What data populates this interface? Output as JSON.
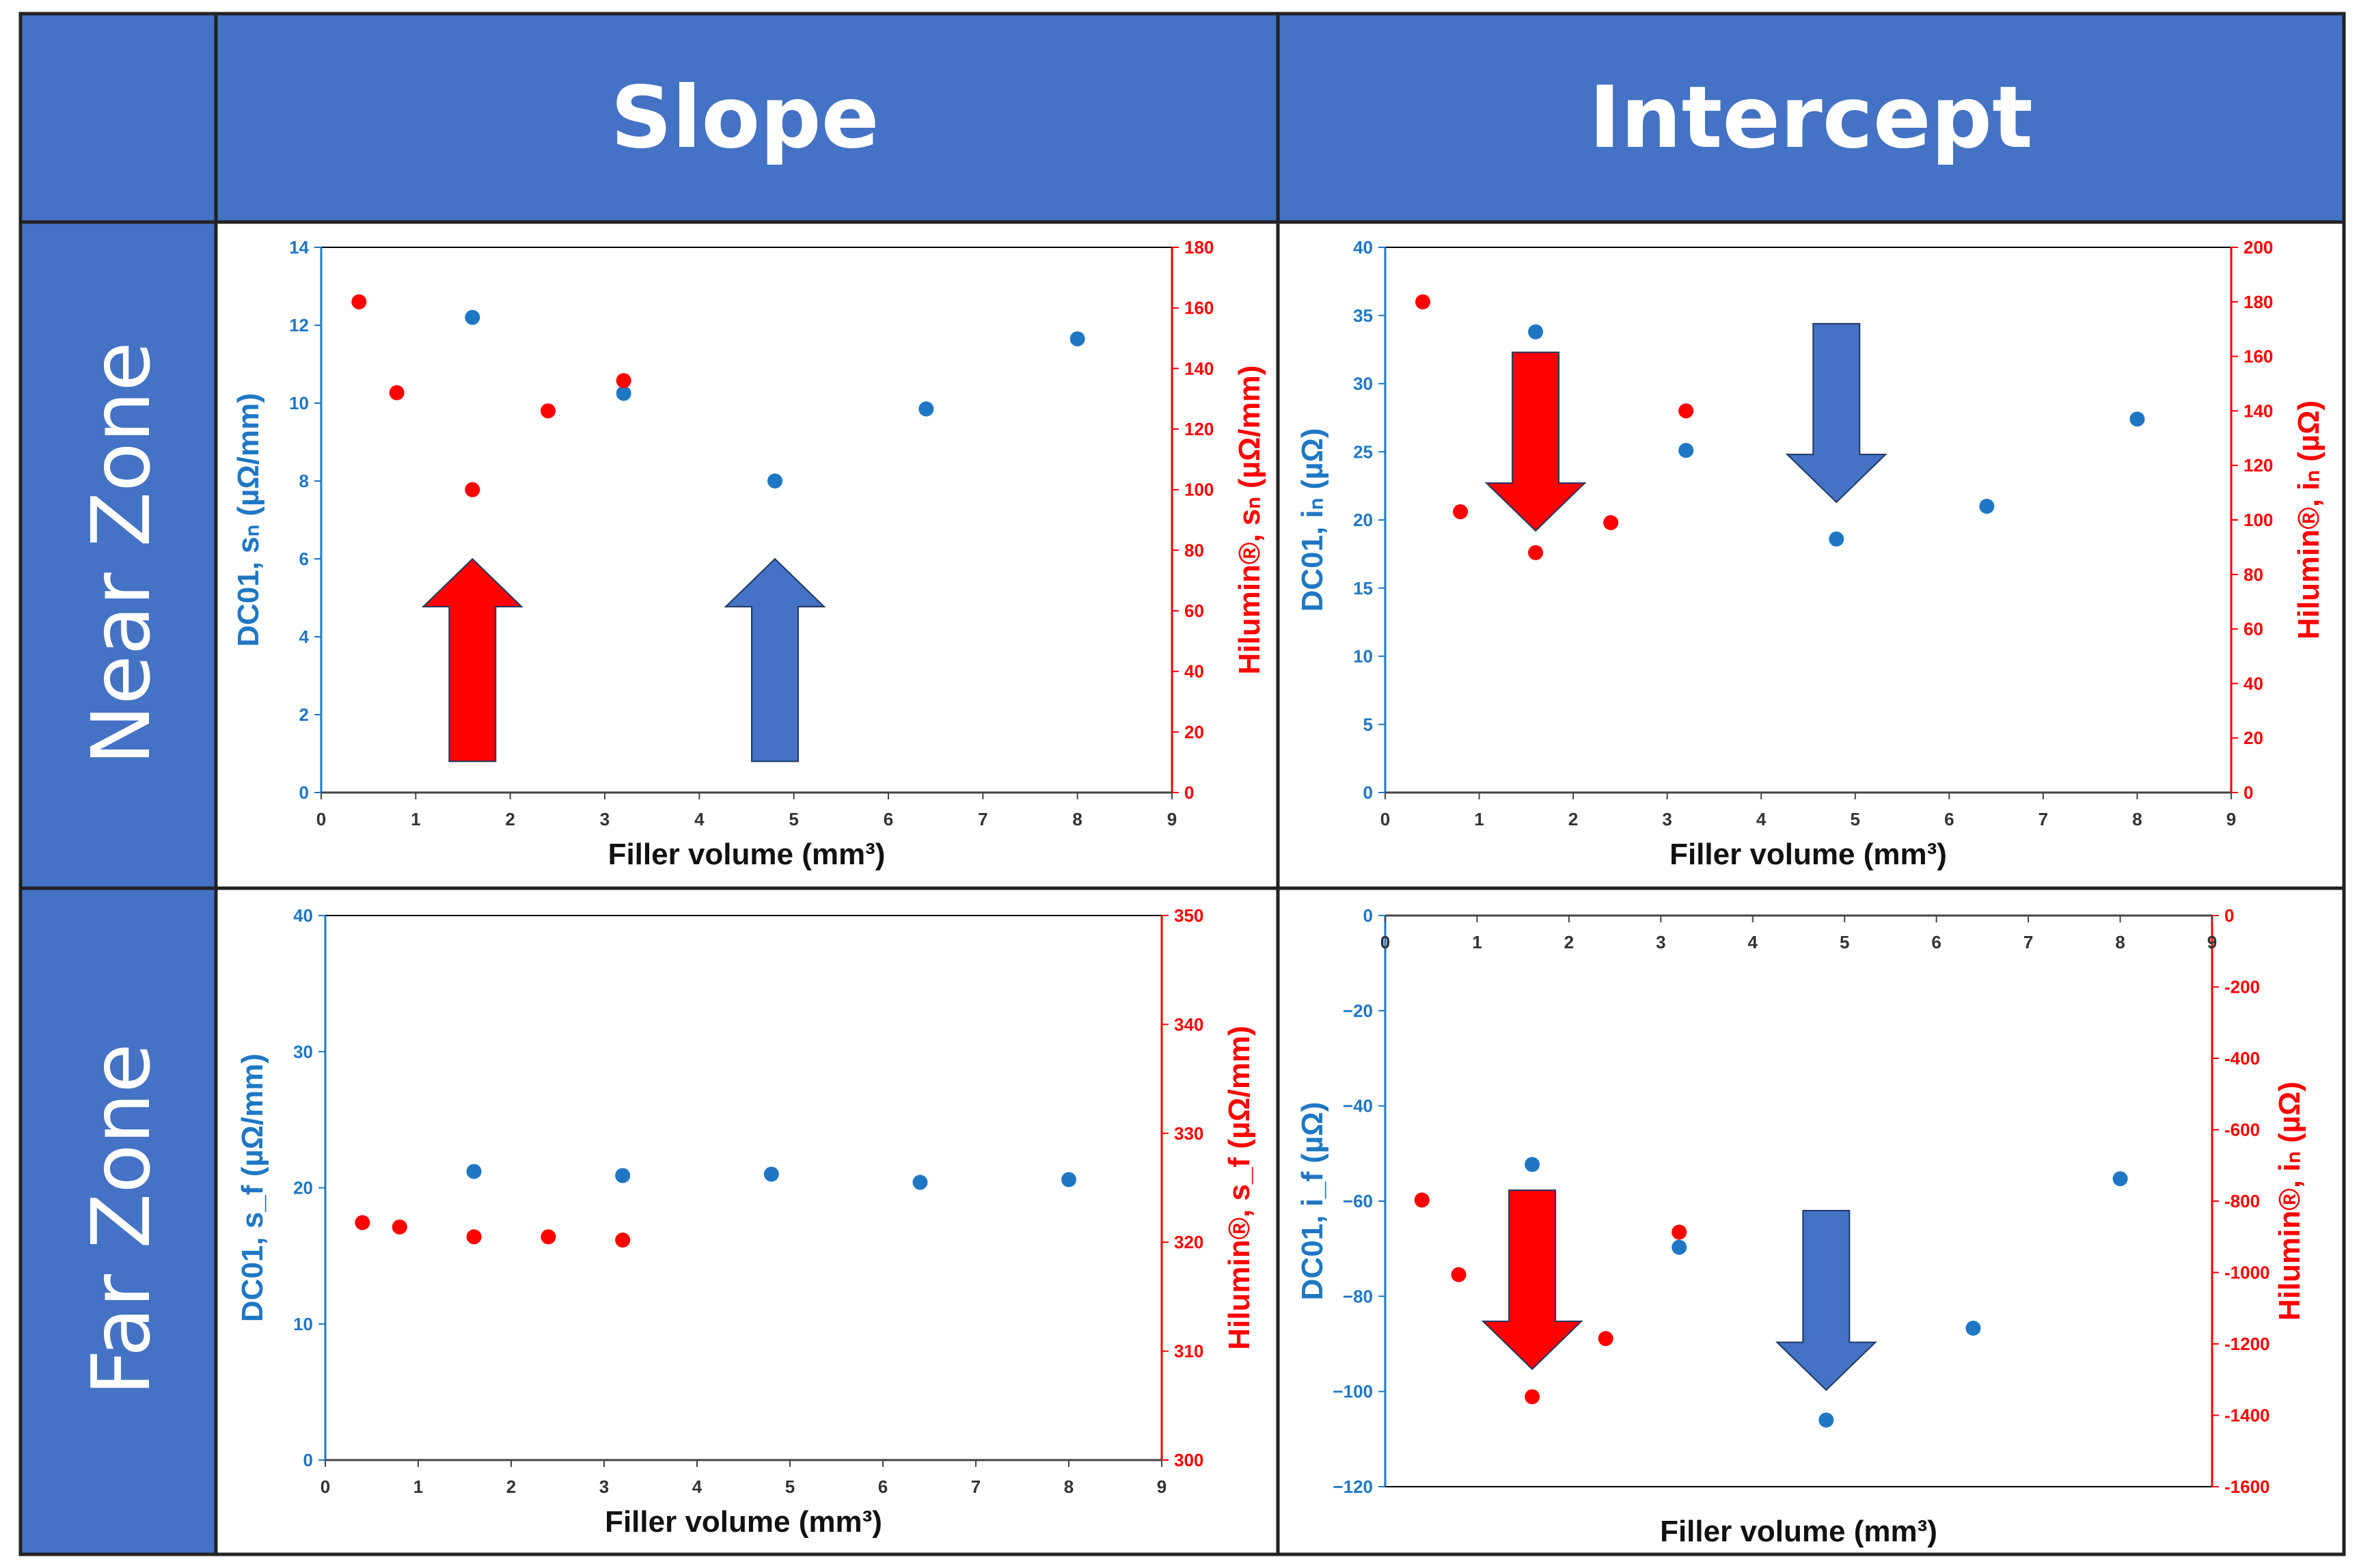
{
  "headers": {
    "corner": "",
    "col1": "Slope",
    "col2": "Intercept"
  },
  "row_labels": [
    "Near Zone",
    "Far Zone"
  ],
  "colors": {
    "header_bg": "#4472c4",
    "dc01": "#1f77c4",
    "hilumin": "#ff0000",
    "arrow_red": "#ff0000",
    "arrow_blue": "#4472c4",
    "grid_line": "#000000"
  },
  "chart_data": [
    {
      "type": "scatter",
      "panel": "near-slope",
      "xlabel": "Filler volume (mm³)",
      "xlim": [
        0,
        9
      ],
      "xticks": [
        0,
        1,
        2,
        3,
        4,
        5,
        6,
        7,
        8,
        9
      ],
      "ylabel_left": "DC01, sₙ (µΩ/mm)",
      "ylabel_right": "Hilumin®, sₙ (µΩ/mm)",
      "ylim_left": [
        0,
        14
      ],
      "yticks_left": [
        0,
        2,
        4,
        6,
        8,
        10,
        12,
        14
      ],
      "ylim_right": [
        0,
        180
      ],
      "yticks_right": [
        0,
        20,
        40,
        60,
        80,
        100,
        120,
        140,
        160,
        180
      ],
      "series": [
        {
          "name": "DC01",
          "axis": "left",
          "color": "#1f77c4",
          "x": [
            1.6,
            3.2,
            4.8,
            6.4,
            8.0
          ],
          "y": [
            12.2,
            10.25,
            8.0,
            9.85,
            11.65
          ]
        },
        {
          "name": "Hilumin",
          "axis": "right",
          "color": "#ff0000",
          "x": [
            0.4,
            0.8,
            1.6,
            2.4,
            3.2
          ],
          "y": [
            162,
            132,
            100,
            126,
            136
          ]
        }
      ],
      "arrows": [
        {
          "dir": "up",
          "color": "red",
          "x": 1.6,
          "y_from": 0.8,
          "y_to": 6.0
        },
        {
          "dir": "up",
          "color": "blue",
          "x": 4.8,
          "y_from": 0.8,
          "y_to": 6.0
        }
      ]
    },
    {
      "type": "scatter",
      "panel": "near-intercept",
      "xlabel": "Filler volume (mm³)",
      "xlim": [
        0,
        9
      ],
      "xticks": [
        0,
        1,
        2,
        3,
        4,
        5,
        6,
        7,
        8,
        9
      ],
      "ylabel_left": "DC01, iₙ (µΩ)",
      "ylabel_right": "Hilumin®, iₙ (µΩ)",
      "ylim_left": [
        0,
        40
      ],
      "yticks_left": [
        0,
        5,
        10,
        15,
        20,
        25,
        30,
        35,
        40
      ],
      "ylim_right": [
        0,
        200
      ],
      "yticks_right": [
        0,
        20,
        40,
        60,
        80,
        100,
        120,
        140,
        160,
        180,
        200
      ],
      "series": [
        {
          "name": "DC01",
          "axis": "left",
          "color": "#1f77c4",
          "x": [
            1.6,
            3.2,
            4.8,
            6.4,
            8.0
          ],
          "y": [
            33.8,
            25.1,
            18.6,
            21.0,
            27.4
          ]
        },
        {
          "name": "Hilumin",
          "axis": "right",
          "color": "#ff0000",
          "x": [
            0.4,
            0.8,
            1.6,
            2.4,
            3.2
          ],
          "y": [
            180,
            103,
            88,
            99,
            140
          ]
        }
      ],
      "arrows": [
        {
          "dir": "down",
          "color": "red",
          "x": 1.6,
          "y_from": 32.3,
          "y_to": 19.2
        },
        {
          "dir": "down",
          "color": "blue",
          "x": 4.8,
          "y_from": 34.4,
          "y_to": 21.3
        }
      ]
    },
    {
      "type": "scatter",
      "panel": "far-slope",
      "xlabel": "Filler volume (mm³)",
      "xlim": [
        0,
        9
      ],
      "xticks": [
        0,
        1,
        2,
        3,
        4,
        5,
        6,
        7,
        8,
        9
      ],
      "ylabel_left": "DC01, s_f (µΩ/mm)",
      "ylabel_right": "Hilumin®, s_f (µΩ/mm)",
      "ylim_left": [
        0,
        40
      ],
      "yticks_left": [
        0,
        10,
        20,
        30,
        40
      ],
      "ylim_right": [
        300,
        350
      ],
      "yticks_right": [
        300,
        310,
        320,
        330,
        340,
        350
      ],
      "series": [
        {
          "name": "DC01",
          "axis": "left",
          "color": "#1f77c4",
          "x": [
            1.6,
            3.2,
            4.8,
            6.4,
            8.0
          ],
          "y": [
            21.2,
            20.9,
            21.0,
            20.4,
            20.6
          ]
        },
        {
          "name": "Hilumin",
          "axis": "right",
          "color": "#ff0000",
          "x": [
            0.4,
            0.8,
            1.6,
            2.4,
            3.2
          ],
          "y": [
            321.8,
            321.4,
            320.5,
            320.5,
            320.2
          ]
        }
      ],
      "arrows": []
    },
    {
      "type": "scatter",
      "panel": "far-intercept",
      "xlabel": "Filler volume (mm³)",
      "xlim": [
        0,
        9
      ],
      "xticks": [
        0,
        1,
        2,
        3,
        4,
        5,
        6,
        7,
        8,
        9
      ],
      "xaxis_position": "top",
      "ylabel_left": "DC01, i_f (µΩ)",
      "ylabel_right": "Hilumin®, iₙ (µΩ)",
      "ylim_left": [
        -120,
        0
      ],
      "yticks_left": [
        0,
        -20,
        -40,
        -60,
        -80,
        -100,
        -120
      ],
      "yticklabels_left": [
        "0",
        "−20",
        "−40",
        "−60",
        "−80",
        "−100",
        "−120"
      ],
      "ylim_right": [
        -1600,
        0
      ],
      "yticks_right": [
        0,
        -200,
        -400,
        -600,
        -800,
        -1000,
        -1200,
        -1400,
        -1600
      ],
      "series": [
        {
          "name": "DC01",
          "axis": "left",
          "color": "#1f77c4",
          "x": [
            1.6,
            3.2,
            4.8,
            6.4,
            8.0
          ],
          "y": [
            -52.3,
            -69.7,
            -106.0,
            -86.7,
            -55.3
          ]
        },
        {
          "name": "Hilumin",
          "axis": "right",
          "color": "#ff0000",
          "x": [
            0.4,
            0.8,
            1.6,
            2.4,
            3.2
          ],
          "y": [
            -797,
            -1006,
            -1348,
            -1185,
            -887
          ]
        }
      ],
      "arrows": [
        {
          "dir": "down",
          "color": "red",
          "x": 1.6,
          "y_from": -57.7,
          "y_to": -95.3
        },
        {
          "dir": "down",
          "color": "blue",
          "x": 4.8,
          "y_from": -62.0,
          "y_to": -99.7
        }
      ]
    }
  ]
}
